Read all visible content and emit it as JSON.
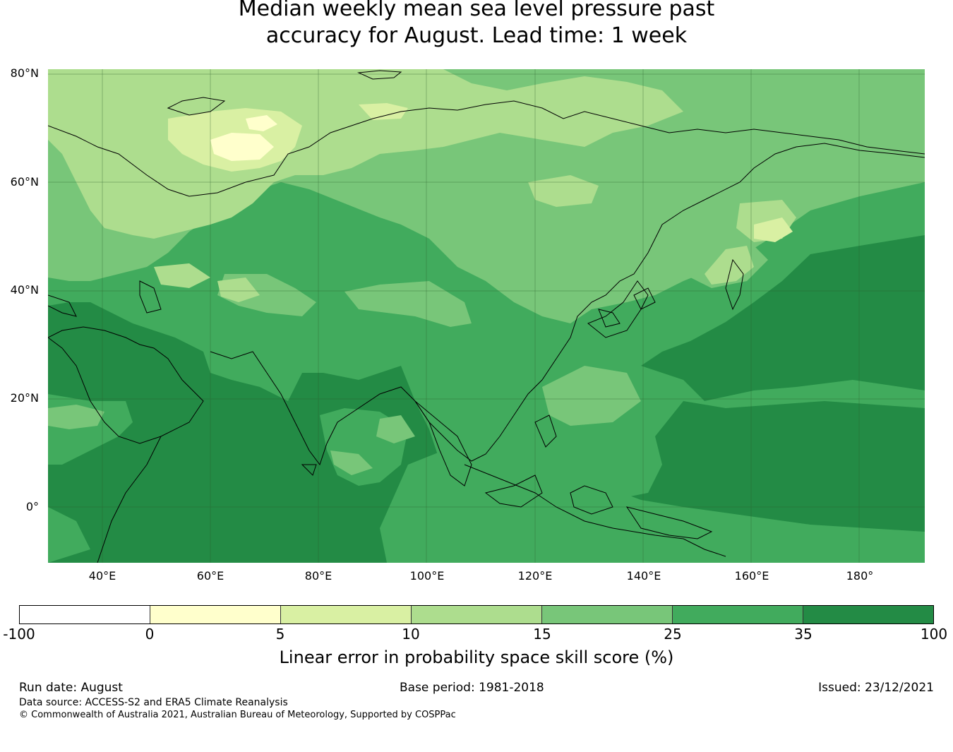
{
  "title": {
    "line1": "Median weekly mean sea level pressure past",
    "line2": "accuracy for August. Lead time: 1 week"
  },
  "map": {
    "lat_labels": [
      "80°N",
      "60°N",
      "40°N",
      "20°N",
      "0°"
    ],
    "lon_labels": [
      "40°E",
      "60°E",
      "80°E",
      "100°E",
      "120°E",
      "140°E",
      "160°E",
      "180°"
    ],
    "region": "Asia-Pacific",
    "extent": {
      "lon": [
        30,
        192
      ],
      "lat": [
        -10,
        81
      ]
    }
  },
  "colorbar": {
    "ticks": [
      "-100",
      "0",
      "5",
      "10",
      "15",
      "25",
      "35",
      "100"
    ],
    "colors": [
      "#ffffff",
      "#ffffcc",
      "#d9f0a3",
      "#addd8e",
      "#78c679",
      "#41ab5d",
      "#238b45"
    ],
    "label": "Linear error in probability space skill score (%)"
  },
  "footer": {
    "run_date": "Run date: August",
    "base_period": "Base period: 1981-2018",
    "issued": "Issued: 23/12/2021",
    "data_source": "Data source: ACCESS-S2 and ERA5 Climate Reanalysis",
    "copyright": "© Commonwealth of Australia 2021, Australian Bureau of Meteorology, Supported by COSPPac"
  }
}
